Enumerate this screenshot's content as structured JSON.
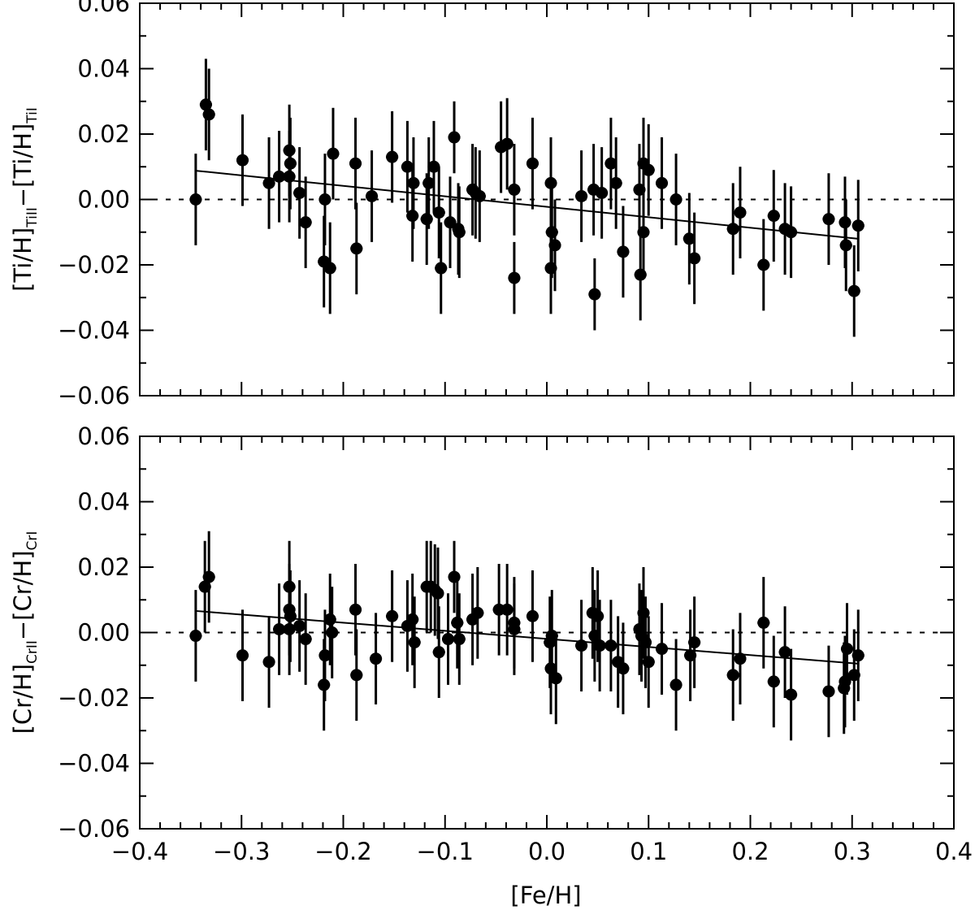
{
  "chart_data": [
    {
      "type": "scatter",
      "panel": "top",
      "ylabel": {
        "parts": [
          {
            "t": "[Ti/H]"
          },
          {
            "t": "TiII",
            "sub": true
          },
          {
            "t": "−[Ti/H]"
          },
          {
            "t": "TiI",
            "sub": true
          }
        ]
      },
      "xlim": [
        -0.4,
        0.4
      ],
      "ylim": [
        -0.06,
        0.06
      ],
      "reference_line": {
        "y": 0.0,
        "style": "dotted"
      },
      "fit_line": {
        "x": [
          -0.345,
          0.305
        ],
        "y": [
          0.0088,
          -0.012
        ]
      },
      "xerr": 0.006,
      "points": [
        {
          "x": -0.345,
          "y": 0.0,
          "yerr": 0.014
        },
        {
          "x": -0.335,
          "y": 0.029,
          "yerr": 0.014
        },
        {
          "x": -0.332,
          "y": 0.026,
          "yerr": 0.014
        },
        {
          "x": -0.299,
          "y": 0.012,
          "yerr": 0.014
        },
        {
          "x": -0.273,
          "y": 0.005,
          "yerr": 0.014
        },
        {
          "x": -0.263,
          "y": 0.007,
          "yerr": 0.014
        },
        {
          "x": -0.253,
          "y": 0.015,
          "yerr": 0.014
        },
        {
          "x": -0.252,
          "y": 0.011,
          "yerr": 0.014
        },
        {
          "x": -0.253,
          "y": 0.007,
          "yerr": 0.014
        },
        {
          "x": -0.243,
          "y": 0.002,
          "yerr": 0.014
        },
        {
          "x": -0.237,
          "y": -0.007,
          "yerr": 0.014
        },
        {
          "x": -0.218,
          "y": 0.0,
          "yerr": 0.014
        },
        {
          "x": -0.219,
          "y": -0.019,
          "yerr": 0.014
        },
        {
          "x": -0.213,
          "y": -0.021,
          "yerr": 0.014
        },
        {
          "x": -0.21,
          "y": 0.014,
          "yerr": 0.014
        },
        {
          "x": -0.188,
          "y": 0.011,
          "yerr": 0.014
        },
        {
          "x": -0.187,
          "y": -0.015,
          "yerr": 0.014
        },
        {
          "x": -0.172,
          "y": 0.001,
          "yerr": 0.014
        },
        {
          "x": -0.152,
          "y": 0.013,
          "yerr": 0.014
        },
        {
          "x": -0.137,
          "y": 0.01,
          "yerr": 0.014
        },
        {
          "x": -0.131,
          "y": 0.005,
          "yerr": 0.014
        },
        {
          "x": -0.132,
          "y": -0.005,
          "yerr": 0.014
        },
        {
          "x": -0.118,
          "y": -0.006,
          "yerr": 0.014
        },
        {
          "x": -0.116,
          "y": 0.005,
          "yerr": 0.014
        },
        {
          "x": -0.111,
          "y": 0.01,
          "yerr": 0.014
        },
        {
          "x": -0.106,
          "y": -0.004,
          "yerr": 0.014
        },
        {
          "x": -0.104,
          "y": -0.021,
          "yerr": 0.014
        },
        {
          "x": -0.095,
          "y": -0.007,
          "yerr": 0.014
        },
        {
          "x": -0.091,
          "y": 0.019,
          "yerr": 0.011
        },
        {
          "x": -0.087,
          "y": -0.009,
          "yerr": 0.014
        },
        {
          "x": -0.086,
          "y": -0.01,
          "yerr": 0.014
        },
        {
          "x": -0.073,
          "y": 0.003,
          "yerr": 0.014
        },
        {
          "x": -0.07,
          "y": 0.002,
          "yerr": 0.014
        },
        {
          "x": -0.066,
          "y": 0.001,
          "yerr": 0.014
        },
        {
          "x": -0.045,
          "y": 0.016,
          "yerr": 0.014
        },
        {
          "x": -0.039,
          "y": 0.017,
          "yerr": 0.014
        },
        {
          "x": -0.032,
          "y": 0.003,
          "yerr": 0.014
        },
        {
          "x": -0.032,
          "y": -0.024,
          "yerr": 0.011
        },
        {
          "x": -0.014,
          "y": 0.011,
          "yerr": 0.014
        },
        {
          "x": 0.004,
          "y": 0.005,
          "yerr": 0.014
        },
        {
          "x": 0.005,
          "y": -0.01,
          "yerr": 0.014
        },
        {
          "x": 0.004,
          "y": -0.021,
          "yerr": 0.014
        },
        {
          "x": 0.008,
          "y": -0.014,
          "yerr": 0.014
        },
        {
          "x": 0.034,
          "y": 0.001,
          "yerr": 0.014
        },
        {
          "x": 0.046,
          "y": 0.003,
          "yerr": 0.014
        },
        {
          "x": 0.047,
          "y": -0.029,
          "yerr": 0.011
        },
        {
          "x": 0.054,
          "y": 0.002,
          "yerr": 0.014
        },
        {
          "x": 0.063,
          "y": 0.011,
          "yerr": 0.014
        },
        {
          "x": 0.068,
          "y": 0.005,
          "yerr": 0.014
        },
        {
          "x": 0.075,
          "y": -0.016,
          "yerr": 0.014
        },
        {
          "x": 0.091,
          "y": 0.003,
          "yerr": 0.014
        },
        {
          "x": 0.092,
          "y": -0.023,
          "yerr": 0.014
        },
        {
          "x": 0.095,
          "y": 0.011,
          "yerr": 0.014
        },
        {
          "x": 0.095,
          "y": -0.01,
          "yerr": 0.014
        },
        {
          "x": 0.1,
          "y": 0.009,
          "yerr": 0.014
        },
        {
          "x": 0.113,
          "y": 0.005,
          "yerr": 0.014
        },
        {
          "x": 0.127,
          "y": 0.0,
          "yerr": 0.014
        },
        {
          "x": 0.14,
          "y": -0.012,
          "yerr": 0.014
        },
        {
          "x": 0.145,
          "y": -0.018,
          "yerr": 0.014
        },
        {
          "x": 0.183,
          "y": -0.009,
          "yerr": 0.014
        },
        {
          "x": 0.19,
          "y": -0.004,
          "yerr": 0.014
        },
        {
          "x": 0.213,
          "y": -0.02,
          "yerr": 0.014
        },
        {
          "x": 0.223,
          "y": -0.005,
          "yerr": 0.014
        },
        {
          "x": 0.234,
          "y": -0.009,
          "yerr": 0.014
        },
        {
          "x": 0.24,
          "y": -0.01,
          "yerr": 0.014
        },
        {
          "x": 0.277,
          "y": -0.006,
          "yerr": 0.014
        },
        {
          "x": 0.293,
          "y": -0.007,
          "yerr": 0.014
        },
        {
          "x": 0.294,
          "y": -0.014,
          "yerr": 0.014
        },
        {
          "x": 0.302,
          "y": -0.028,
          "yerr": 0.014
        },
        {
          "x": 0.306,
          "y": -0.008,
          "yerr": 0.014
        }
      ]
    },
    {
      "type": "scatter",
      "panel": "bottom",
      "xlabel": "[Fe/H]",
      "ylabel": {
        "parts": [
          {
            "t": "[Cr/H]"
          },
          {
            "t": "CrII",
            "sub": true
          },
          {
            "t": "−[Cr/H]"
          },
          {
            "t": "CrI",
            "sub": true
          }
        ]
      },
      "xlim": [
        -0.4,
        0.4
      ],
      "ylim": [
        -0.06,
        0.06
      ],
      "reference_line": {
        "y": 0.0,
        "style": "dotted"
      },
      "fit_line": {
        "x": [
          -0.345,
          0.305
        ],
        "y": [
          0.0066,
          -0.0095
        ]
      },
      "xerr": 0.006,
      "points": [
        {
          "x": -0.345,
          "y": -0.001,
          "yerr": 0.014
        },
        {
          "x": -0.336,
          "y": 0.014,
          "yerr": 0.014
        },
        {
          "x": -0.332,
          "y": 0.017,
          "yerr": 0.014
        },
        {
          "x": -0.299,
          "y": -0.007,
          "yerr": 0.014
        },
        {
          "x": -0.273,
          "y": -0.009,
          "yerr": 0.014
        },
        {
          "x": -0.263,
          "y": 0.001,
          "yerr": 0.014
        },
        {
          "x": -0.253,
          "y": 0.014,
          "yerr": 0.014
        },
        {
          "x": -0.253,
          "y": 0.007,
          "yerr": 0.014
        },
        {
          "x": -0.252,
          "y": 0.005,
          "yerr": 0.014
        },
        {
          "x": -0.253,
          "y": 0.001,
          "yerr": 0.014
        },
        {
          "x": -0.243,
          "y": 0.002,
          "yerr": 0.014
        },
        {
          "x": -0.237,
          "y": -0.002,
          "yerr": 0.014
        },
        {
          "x": -0.218,
          "y": -0.007,
          "yerr": 0.014
        },
        {
          "x": -0.219,
          "y": -0.016,
          "yerr": 0.014
        },
        {
          "x": -0.213,
          "y": 0.004,
          "yerr": 0.014
        },
        {
          "x": -0.211,
          "y": 0.0,
          "yerr": 0.014
        },
        {
          "x": -0.188,
          "y": 0.007,
          "yerr": 0.014
        },
        {
          "x": -0.187,
          "y": -0.013,
          "yerr": 0.014
        },
        {
          "x": -0.168,
          "y": -0.008,
          "yerr": 0.014
        },
        {
          "x": -0.152,
          "y": 0.005,
          "yerr": 0.014
        },
        {
          "x": -0.137,
          "y": 0.002,
          "yerr": 0.014
        },
        {
          "x": -0.132,
          "y": 0.004,
          "yerr": 0.014
        },
        {
          "x": -0.13,
          "y": -0.003,
          "yerr": 0.014
        },
        {
          "x": -0.118,
          "y": 0.014,
          "yerr": 0.014
        },
        {
          "x": -0.114,
          "y": 0.014,
          "yerr": 0.014
        },
        {
          "x": -0.11,
          "y": 0.013,
          "yerr": 0.014
        },
        {
          "x": -0.107,
          "y": 0.012,
          "yerr": 0.014
        },
        {
          "x": -0.106,
          "y": -0.006,
          "yerr": 0.014
        },
        {
          "x": -0.097,
          "y": -0.002,
          "yerr": 0.014
        },
        {
          "x": -0.091,
          "y": 0.017,
          "yerr": 0.011
        },
        {
          "x": -0.088,
          "y": 0.003,
          "yerr": 0.014
        },
        {
          "x": -0.086,
          "y": -0.002,
          "yerr": 0.014
        },
        {
          "x": -0.073,
          "y": 0.004,
          "yerr": 0.014
        },
        {
          "x": -0.068,
          "y": 0.006,
          "yerr": 0.014
        },
        {
          "x": -0.047,
          "y": 0.007,
          "yerr": 0.014
        },
        {
          "x": -0.039,
          "y": 0.007,
          "yerr": 0.014
        },
        {
          "x": -0.032,
          "y": 0.003,
          "yerr": 0.014
        },
        {
          "x": -0.032,
          "y": 0.001,
          "yerr": 0.014
        },
        {
          "x": -0.014,
          "y": 0.005,
          "yerr": 0.014
        },
        {
          "x": 0.003,
          "y": -0.003,
          "yerr": 0.014
        },
        {
          "x": 0.005,
          "y": -0.001,
          "yerr": 0.014
        },
        {
          "x": 0.004,
          "y": -0.011,
          "yerr": 0.014
        },
        {
          "x": 0.009,
          "y": -0.014,
          "yerr": 0.014
        },
        {
          "x": 0.034,
          "y": -0.004,
          "yerr": 0.014
        },
        {
          "x": 0.045,
          "y": 0.006,
          "yerr": 0.014
        },
        {
          "x": 0.047,
          "y": -0.001,
          "yerr": 0.014
        },
        {
          "x": 0.05,
          "y": 0.005,
          "yerr": 0.014
        },
        {
          "x": 0.052,
          "y": -0.004,
          "yerr": 0.014
        },
        {
          "x": 0.063,
          "y": -0.004,
          "yerr": 0.014
        },
        {
          "x": 0.07,
          "y": -0.009,
          "yerr": 0.014
        },
        {
          "x": 0.075,
          "y": -0.011,
          "yerr": 0.014
        },
        {
          "x": 0.091,
          "y": 0.001,
          "yerr": 0.014
        },
        {
          "x": 0.093,
          "y": -0.001,
          "yerr": 0.014
        },
        {
          "x": 0.095,
          "y": 0.006,
          "yerr": 0.014
        },
        {
          "x": 0.097,
          "y": -0.003,
          "yerr": 0.014
        },
        {
          "x": 0.1,
          "y": -0.009,
          "yerr": 0.014
        },
        {
          "x": 0.113,
          "y": -0.005,
          "yerr": 0.014
        },
        {
          "x": 0.127,
          "y": -0.016,
          "yerr": 0.014
        },
        {
          "x": 0.141,
          "y": -0.007,
          "yerr": 0.014
        },
        {
          "x": 0.145,
          "y": -0.003,
          "yerr": 0.014
        },
        {
          "x": 0.183,
          "y": -0.013,
          "yerr": 0.014
        },
        {
          "x": 0.19,
          "y": -0.008,
          "yerr": 0.014
        },
        {
          "x": 0.213,
          "y": 0.003,
          "yerr": 0.014
        },
        {
          "x": 0.223,
          "y": -0.015,
          "yerr": 0.014
        },
        {
          "x": 0.234,
          "y": -0.006,
          "yerr": 0.014
        },
        {
          "x": 0.24,
          "y": -0.019,
          "yerr": 0.014
        },
        {
          "x": 0.277,
          "y": -0.018,
          "yerr": 0.014
        },
        {
          "x": 0.292,
          "y": -0.017,
          "yerr": 0.014
        },
        {
          "x": 0.293,
          "y": -0.015,
          "yerr": 0.014
        },
        {
          "x": 0.295,
          "y": -0.005,
          "yerr": 0.014
        },
        {
          "x": 0.302,
          "y": -0.013,
          "yerr": 0.014
        },
        {
          "x": 0.306,
          "y": -0.007,
          "yerr": 0.014
        }
      ]
    }
  ],
  "x_tick_labels": [
    "−0.4",
    "−0.3",
    "−0.2",
    "−0.1",
    "0.0",
    "0.1",
    "0.2",
    "0.3",
    "0.4"
  ],
  "y_tick_labels": [
    "−0.06",
    "−0.04",
    "−0.02",
    "0.00",
    "0.02",
    "0.04",
    "0.06"
  ]
}
